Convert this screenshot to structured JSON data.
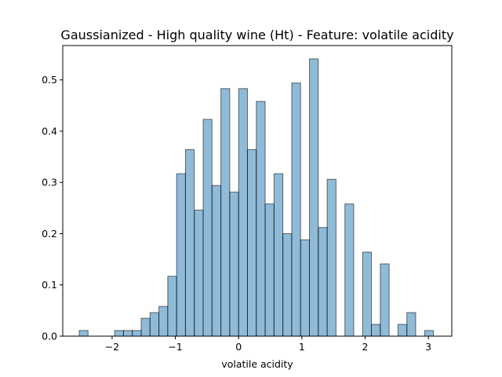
{
  "chart_data": {
    "type": "bar",
    "title": "Gaussianized - High quality wine (Ht) - Feature: volatile acidity",
    "xlabel": "volatile acidity",
    "ylabel": "",
    "xlim": [
      -2.78,
      3.37
    ],
    "ylim": [
      0,
      0.567
    ],
    "bin_width": 0.1395,
    "bin_starts": [
      -2.52,
      -2.38,
      -2.24,
      -2.1,
      -1.96,
      -1.82,
      -1.68,
      -1.54,
      -1.4,
      -1.26,
      -1.12,
      -0.98,
      -0.84,
      -0.7,
      -0.56,
      -0.42,
      -0.28,
      -0.14,
      0.0,
      0.14,
      0.28,
      0.42,
      0.56,
      0.7,
      0.84,
      0.98,
      1.12,
      1.26,
      1.4,
      1.54,
      1.68,
      1.82,
      1.96,
      2.1,
      2.24,
      2.38,
      2.52,
      2.66,
      2.8,
      2.94
    ],
    "values": [
      0.011,
      0.0,
      0.0,
      0.0,
      0.011,
      0.011,
      0.011,
      0.035,
      0.046,
      0.058,
      0.117,
      0.317,
      0.364,
      0.246,
      0.423,
      0.294,
      0.483,
      0.281,
      0.483,
      0.364,
      0.458,
      0.258,
      0.317,
      0.2,
      0.494,
      0.188,
      0.541,
      0.212,
      0.306,
      0.0,
      0.258,
      0.0,
      0.164,
      0.023,
      0.141,
      0.0,
      0.023,
      0.046,
      0.0,
      0.011
    ],
    "xticks": [
      -2,
      -1,
      0,
      1,
      2,
      3
    ],
    "xtick_labels": [
      "−2",
      "−1",
      "0",
      "1",
      "2",
      "3"
    ],
    "yticks": [
      0.0,
      0.1,
      0.2,
      0.3,
      0.4,
      0.5
    ],
    "ytick_labels": [
      "0.0",
      "0.1",
      "0.2",
      "0.3",
      "0.4",
      "0.5"
    ],
    "grid": false,
    "bar_color": "#1f77b4",
    "bar_alpha": 0.5,
    "edge_color": "#000000"
  }
}
